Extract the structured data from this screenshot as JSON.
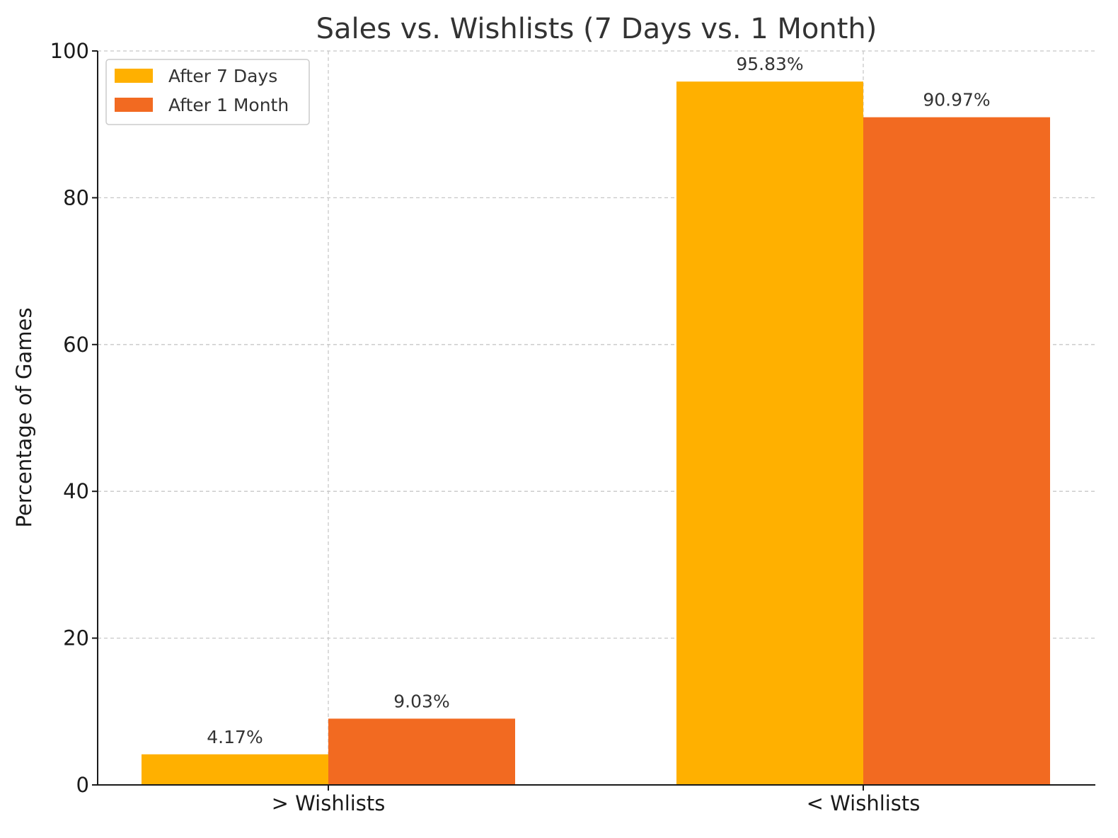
{
  "chart_data": {
    "type": "bar",
    "title": "Sales vs. Wishlists (7 Days vs. 1 Month)",
    "xlabel": "",
    "ylabel": "Percentage of Games",
    "categories": [
      "> Wishlists",
      "< Wishlists"
    ],
    "series": [
      {
        "name": "After 7 Days",
        "values": [
          4.17,
          95.83
        ],
        "labels": [
          "4.17%",
          "95.83%"
        ],
        "color": "#FFB000"
      },
      {
        "name": "After 1 Month",
        "values": [
          9.03,
          90.97
        ],
        "labels": [
          "9.03%",
          "90.97%"
        ],
        "color": "#F26A21"
      }
    ],
    "ylim": [
      0,
      100
    ],
    "yticks": [
      "0",
      "20",
      "40",
      "60",
      "80",
      "100"
    ],
    "grid": true,
    "legend_position": "top-left"
  }
}
